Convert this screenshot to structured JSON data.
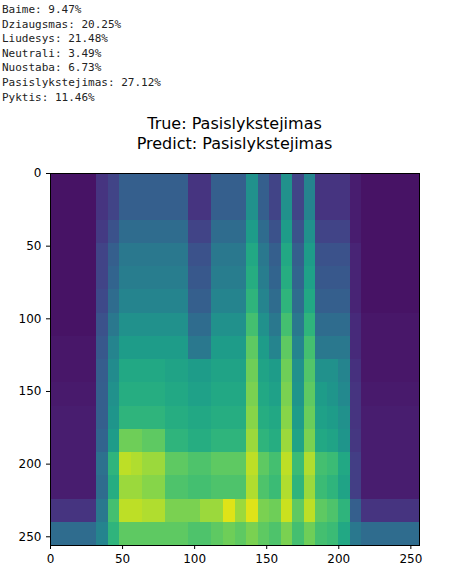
{
  "chart_data": {
    "type": "heatmap",
    "title": "True: Pasislykstejimas\nPredict: Pasislykstejimas",
    "annotations": [
      "Baime: 9.47%",
      "Dziaugsmas: 20.25%",
      "Liudesys: 21.48%",
      "Neutrali: 3.49%",
      "Nuostaba: 6.73%",
      "Pasislykstejimas: 27.12%",
      "Pyktis: 11.46%"
    ],
    "color": "viridis",
    "clim": [
      0,
      1
    ],
    "xlim": [
      0,
      256
    ],
    "xticks": [
      0,
      50,
      100,
      150,
      200,
      250
    ],
    "ylim": [
      256,
      0
    ],
    "yticks": [
      0,
      50,
      100,
      150,
      200,
      250
    ],
    "x_bins": [
      0,
      8,
      16,
      24,
      32,
      40,
      48,
      56,
      64,
      72,
      80,
      88,
      96,
      104,
      112,
      120,
      128,
      136,
      144,
      152,
      160,
      168,
      176,
      184,
      192,
      200,
      208,
      216,
      224,
      232,
      240,
      248,
      256
    ],
    "y_bins": [
      0,
      16,
      32,
      48,
      64,
      80,
      96,
      112,
      128,
      144,
      160,
      176,
      192,
      208,
      224,
      240,
      256
    ],
    "cells": [
      [
        0.05,
        0.05,
        0.05,
        0.05,
        0.15,
        0.2,
        0.3,
        0.3,
        0.3,
        0.3,
        0.3,
        0.3,
        0.15,
        0.15,
        0.3,
        0.3,
        0.3,
        0.5,
        0.3,
        0.2,
        0.5,
        0.2,
        0.45,
        0.15,
        0.15,
        0.15,
        0.08,
        0.05,
        0.05,
        0.05,
        0.05,
        0.05
      ],
      [
        0.05,
        0.05,
        0.05,
        0.05,
        0.15,
        0.2,
        0.3,
        0.3,
        0.3,
        0.3,
        0.3,
        0.3,
        0.15,
        0.15,
        0.3,
        0.3,
        0.3,
        0.5,
        0.3,
        0.2,
        0.5,
        0.2,
        0.45,
        0.15,
        0.15,
        0.15,
        0.08,
        0.05,
        0.05,
        0.05,
        0.05,
        0.05
      ],
      [
        0.05,
        0.05,
        0.05,
        0.05,
        0.17,
        0.25,
        0.35,
        0.35,
        0.35,
        0.35,
        0.35,
        0.35,
        0.2,
        0.2,
        0.35,
        0.35,
        0.35,
        0.55,
        0.35,
        0.25,
        0.55,
        0.25,
        0.5,
        0.2,
        0.2,
        0.2,
        0.08,
        0.05,
        0.05,
        0.05,
        0.05,
        0.05
      ],
      [
        0.05,
        0.05,
        0.05,
        0.05,
        0.2,
        0.3,
        0.4,
        0.4,
        0.4,
        0.4,
        0.4,
        0.4,
        0.25,
        0.25,
        0.4,
        0.4,
        0.4,
        0.6,
        0.4,
        0.3,
        0.6,
        0.3,
        0.55,
        0.25,
        0.25,
        0.25,
        0.1,
        0.05,
        0.05,
        0.05,
        0.05,
        0.05
      ],
      [
        0.05,
        0.05,
        0.05,
        0.05,
        0.2,
        0.32,
        0.42,
        0.42,
        0.42,
        0.42,
        0.42,
        0.42,
        0.27,
        0.27,
        0.42,
        0.42,
        0.42,
        0.62,
        0.42,
        0.32,
        0.62,
        0.32,
        0.57,
        0.27,
        0.27,
        0.27,
        0.1,
        0.05,
        0.05,
        0.05,
        0.05,
        0.05
      ],
      [
        0.05,
        0.05,
        0.05,
        0.05,
        0.22,
        0.35,
        0.45,
        0.45,
        0.45,
        0.45,
        0.45,
        0.45,
        0.3,
        0.3,
        0.45,
        0.45,
        0.45,
        0.65,
        0.45,
        0.35,
        0.65,
        0.35,
        0.6,
        0.3,
        0.3,
        0.3,
        0.1,
        0.05,
        0.05,
        0.05,
        0.05,
        0.05
      ],
      [
        0.05,
        0.05,
        0.05,
        0.05,
        0.25,
        0.4,
        0.5,
        0.5,
        0.5,
        0.5,
        0.5,
        0.5,
        0.35,
        0.35,
        0.5,
        0.5,
        0.5,
        0.7,
        0.5,
        0.4,
        0.7,
        0.4,
        0.65,
        0.35,
        0.35,
        0.35,
        0.12,
        0.06,
        0.06,
        0.06,
        0.06,
        0.06
      ],
      [
        0.06,
        0.06,
        0.06,
        0.06,
        0.27,
        0.45,
        0.55,
        0.55,
        0.55,
        0.55,
        0.55,
        0.55,
        0.4,
        0.4,
        0.55,
        0.55,
        0.55,
        0.75,
        0.55,
        0.45,
        0.75,
        0.45,
        0.7,
        0.4,
        0.4,
        0.4,
        0.12,
        0.06,
        0.06,
        0.06,
        0.06,
        0.06
      ],
      [
        0.06,
        0.06,
        0.06,
        0.06,
        0.29,
        0.48,
        0.6,
        0.6,
        0.6,
        0.6,
        0.58,
        0.58,
        0.55,
        0.55,
        0.58,
        0.58,
        0.58,
        0.78,
        0.58,
        0.55,
        0.78,
        0.5,
        0.73,
        0.5,
        0.5,
        0.45,
        0.14,
        0.06,
        0.06,
        0.06,
        0.06,
        0.06
      ],
      [
        0.07,
        0.07,
        0.07,
        0.07,
        0.3,
        0.5,
        0.62,
        0.62,
        0.62,
        0.62,
        0.6,
        0.6,
        0.57,
        0.57,
        0.6,
        0.6,
        0.6,
        0.8,
        0.6,
        0.57,
        0.8,
        0.52,
        0.75,
        0.55,
        0.52,
        0.47,
        0.15,
        0.07,
        0.07,
        0.07,
        0.07,
        0.07
      ],
      [
        0.08,
        0.08,
        0.08,
        0.08,
        0.3,
        0.52,
        0.65,
        0.65,
        0.65,
        0.65,
        0.62,
        0.62,
        0.6,
        0.6,
        0.62,
        0.62,
        0.62,
        0.82,
        0.62,
        0.6,
        0.82,
        0.55,
        0.77,
        0.57,
        0.55,
        0.5,
        0.15,
        0.08,
        0.08,
        0.08,
        0.08,
        0.08
      ],
      [
        0.08,
        0.08,
        0.08,
        0.08,
        0.32,
        0.55,
        0.78,
        0.78,
        0.75,
        0.75,
        0.65,
        0.65,
        0.62,
        0.62,
        0.65,
        0.65,
        0.65,
        0.85,
        0.65,
        0.62,
        0.85,
        0.58,
        0.8,
        0.6,
        0.58,
        0.52,
        0.16,
        0.08,
        0.08,
        0.08,
        0.08,
        0.08
      ],
      [
        0.08,
        0.08,
        0.08,
        0.08,
        0.37,
        0.65,
        0.9,
        0.88,
        0.85,
        0.85,
        0.75,
        0.75,
        0.72,
        0.72,
        0.75,
        0.75,
        0.75,
        0.9,
        0.75,
        0.7,
        0.9,
        0.68,
        0.88,
        0.7,
        0.68,
        0.6,
        0.18,
        0.08,
        0.08,
        0.08,
        0.08,
        0.08
      ],
      [
        0.08,
        0.08,
        0.08,
        0.08,
        0.35,
        0.62,
        0.85,
        0.85,
        0.82,
        0.82,
        0.72,
        0.72,
        0.7,
        0.7,
        0.72,
        0.72,
        0.72,
        0.88,
        0.72,
        0.68,
        0.88,
        0.65,
        0.85,
        0.68,
        0.65,
        0.58,
        0.18,
        0.08,
        0.08,
        0.08,
        0.08,
        0.08
      ],
      [
        0.15,
        0.15,
        0.15,
        0.15,
        0.4,
        0.7,
        0.9,
        0.9,
        0.88,
        0.88,
        0.8,
        0.8,
        0.8,
        0.85,
        0.85,
        0.95,
        0.85,
        0.95,
        0.8,
        0.78,
        0.92,
        0.75,
        0.9,
        0.75,
        0.72,
        0.65,
        0.3,
        0.15,
        0.15,
        0.15,
        0.15,
        0.15
      ],
      [
        0.35,
        0.35,
        0.35,
        0.35,
        0.45,
        0.65,
        0.75,
        0.75,
        0.75,
        0.75,
        0.75,
        0.75,
        0.72,
        0.72,
        0.75,
        0.78,
        0.75,
        0.8,
        0.75,
        0.72,
        0.8,
        0.7,
        0.78,
        0.7,
        0.68,
        0.6,
        0.4,
        0.35,
        0.35,
        0.35,
        0.35,
        0.35
      ]
    ]
  }
}
